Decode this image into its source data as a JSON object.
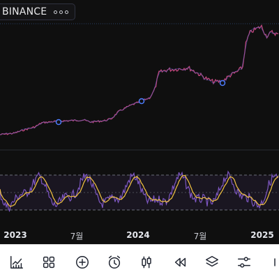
{
  "symbol": {
    "exchange": "BINANCE"
  },
  "time_axis": {
    "labels": [
      "2023",
      "7월",
      "2024",
      "7월",
      "2025"
    ]
  },
  "colors": {
    "background": "#0f0f0f",
    "price_line": "#c2477e",
    "rsi_line": "#7e57c2",
    "rsi_ma": "#f5c542",
    "rsi_band": "#7e57c2"
  },
  "toolbar": {
    "icons": [
      "line-chart-icon",
      "grid-icon",
      "plus-circle-icon",
      "alarm-clock-icon",
      "candles-icon",
      "rewind-icon",
      "layers-icon",
      "sliders-icon"
    ]
  }
}
